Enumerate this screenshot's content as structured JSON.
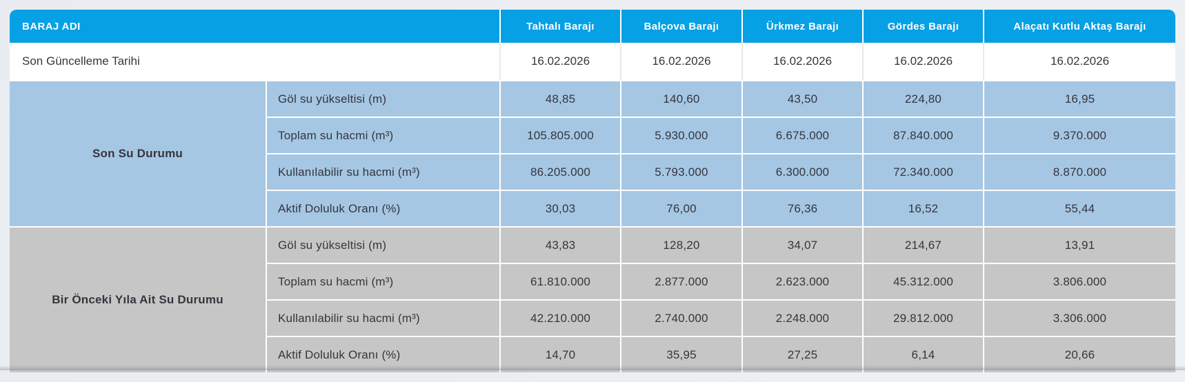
{
  "table": {
    "header": {
      "label_col": "BARAJ ADI",
      "columns": [
        "Tahtalı Barajı",
        "Balçova Barajı",
        "Ürkmez Barajı",
        "Gördes Barajı",
        "Alaçatı Kutlu Aktaş Barajı"
      ]
    },
    "update_row": {
      "label": "Son Güncelleme Tarihi",
      "values": [
        "16.02.2026",
        "16.02.2026",
        "16.02.2026",
        "16.02.2026",
        "16.02.2026"
      ]
    },
    "sections": [
      {
        "name": "Son Su Durumu",
        "theme": "blue",
        "rows": [
          {
            "label": "Göl su yükseltisi (m)",
            "values": [
              "48,85",
              "140,60",
              "43,50",
              "224,80",
              "16,95"
            ]
          },
          {
            "label": "Toplam su hacmi (m³)",
            "values": [
              "105.805.000",
              "5.930.000",
              "6.675.000",
              "87.840.000",
              "9.370.000"
            ]
          },
          {
            "label": "Kullanılabilir su hacmi (m³)",
            "values": [
              "86.205.000",
              "5.793.000",
              "6.300.000",
              "72.340.000",
              "8.870.000"
            ]
          },
          {
            "label": "Aktif Doluluk Oranı (%)",
            "values": [
              "30,03",
              "76,00",
              "76,36",
              "16,52",
              "55,44"
            ]
          }
        ]
      },
      {
        "name": "Bir Önceki Yıla Ait Su Durumu",
        "theme": "gray",
        "rows": [
          {
            "label": "Göl su yükseltisi (m)",
            "values": [
              "43,83",
              "128,20",
              "34,07",
              "214,67",
              "13,91"
            ]
          },
          {
            "label": "Toplam su hacmi (m³)",
            "values": [
              "61.810.000",
              "2.877.000",
              "2.623.000",
              "45.312.000",
              "3.806.000"
            ]
          },
          {
            "label": "Kullanılabilir su hacmi (m³)",
            "values": [
              "42.210.000",
              "2.740.000",
              "2.248.000",
              "29.812.000",
              "3.306.000"
            ]
          },
          {
            "label": "Aktif Doluluk Oranı (%)",
            "values": [
              "14,70",
              "35,95",
              "27,25",
              "6,14",
              "20,66"
            ]
          }
        ]
      }
    ],
    "colors": {
      "header_bg": "#06a0e4",
      "blue_section_bg": "#a5c7e4",
      "gray_section_bg": "#c6c6c6",
      "page_bg": "#ecf0f3",
      "text": "#35353d",
      "header_text": "#ffffff"
    }
  }
}
